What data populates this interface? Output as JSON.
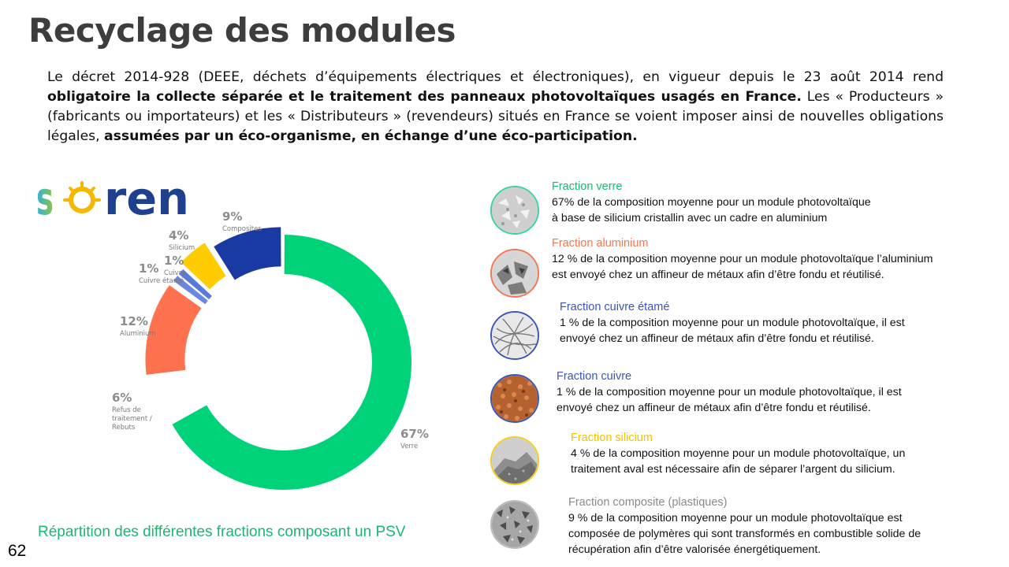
{
  "page": {
    "title": "Recyclage des modules",
    "intro": {
      "part1": "Le décret 2014-928 (DEEE, déchets d’équipements électriques et électroniques), en vigueur depuis le 23 août 2014 rend ",
      "bold1": "obligatoire la collecte séparée et le traitement des panneaux photovoltaïques usagés en France.",
      "part2": " Les « Producteurs » (fabricants ou importateurs) et les « Distributeurs » (revendeurs) situés en France se voient imposer ainsi de nouvelles obligations légales, ",
      "bold2": "assumées par un éco-organisme, en échange d’une éco-participation."
    },
    "logo_text": "soren",
    "chart_caption": "Répartition des différentes fractions composant un PSV",
    "page_number": "62"
  },
  "chart_data": {
    "type": "pie",
    "variant": "donut",
    "categories": [
      "Verre",
      "Refus de traitement / Rebuts",
      "Aluminium",
      "Cuivre étamé",
      "Cuivre",
      "Silicium",
      "Composites"
    ],
    "values": [
      67,
      6,
      12,
      1,
      1,
      4,
      9
    ],
    "percent_labels": [
      "67%",
      "6%",
      "12%",
      "1%",
      "1%",
      "4%",
      "9%"
    ],
    "colors": [
      "#00d27a",
      "#ffffff",
      "#ff7250",
      "#6b86e0",
      "#5b78dc",
      "#ffcc00",
      "#1a3aa3"
    ]
  },
  "fractions": [
    {
      "title": "Fraction verre",
      "title_color": "#19b774",
      "border": "#3dd39a",
      "lines": [
        "67% de la composition moyenne pour un module photovoltaïque",
        "à base de silicium cristallin avec un cadre en aluminium"
      ]
    },
    {
      "title": "Fraction aluminium",
      "title_color": "#f07855",
      "border": "#f07855",
      "lines": [
        "12 % de la composition moyenne pour un module photovoltaïque l’aluminium",
        "est envoyé chez un affineur de métaux afin d’être fondu et réutilisé."
      ]
    },
    {
      "title": "Fraction cuivre étamé",
      "title_color": "#3b56b8",
      "border": "#3b56b8",
      "lines": [
        "1 % de la composition moyenne pour un module photovoltaïque, il est",
        "envoyé chez un affineur de métaux afin d’être fondu et réutilisé."
      ]
    },
    {
      "title": "Fraction cuivre",
      "title_color": "#3b56b8",
      "border": "#3b56b8",
      "lines": [
        "1 % de la composition moyenne pour un module photovoltaïque, il est",
        "envoyé chez un affineur de métaux afin d’être fondu et réutilisé."
      ]
    },
    {
      "title": "Fraction silicium",
      "title_color": "#f2c200",
      "border": "#f5cc20",
      "lines": [
        "4 % de la composition moyenne pour un module photovoltaïque, un",
        "traitement aval est nécessaire afin de séparer l’argent du silicium."
      ]
    },
    {
      "title": "Fraction composite (plastiques)",
      "title_color": "#8a8a8a",
      "border": "#bdbdbd",
      "lines": [
        "9 % de la composition moyenne pour un module photovoltaïque est",
        "composée de polymères qui sont transformés en combustible solide de",
        "récupération  afin d’être valorisée énergétiquement."
      ]
    }
  ]
}
